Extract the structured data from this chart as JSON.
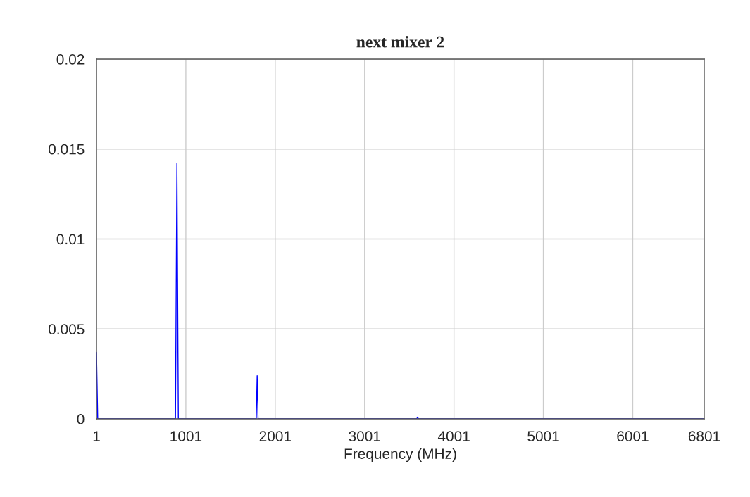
{
  "chart_data": {
    "type": "line",
    "title": "next mixer 2",
    "xlabel": "Frequency (MHz)",
    "series": [
      {
        "color": "#0000ff",
        "x": [
          1,
          15,
          885,
          901,
          917,
          1789,
          1799,
          1809,
          3584,
          3594,
          3604,
          6801
        ],
        "values": [
          0.0037,
          0,
          0,
          0.0142,
          0,
          0,
          0.0024,
          0,
          0,
          0.0001,
          0,
          0
        ]
      }
    ],
    "xlim": [
      1,
      6801
    ],
    "xticks": [
      1,
      1001,
      2001,
      3001,
      4001,
      5001,
      6001,
      6801
    ],
    "ylim": [
      0,
      0.02
    ],
    "yticks": [
      0,
      0.005,
      0.01,
      0.015,
      0.02
    ],
    "grid": true,
    "legend": false,
    "marker": "none",
    "line_style": "solid"
  }
}
